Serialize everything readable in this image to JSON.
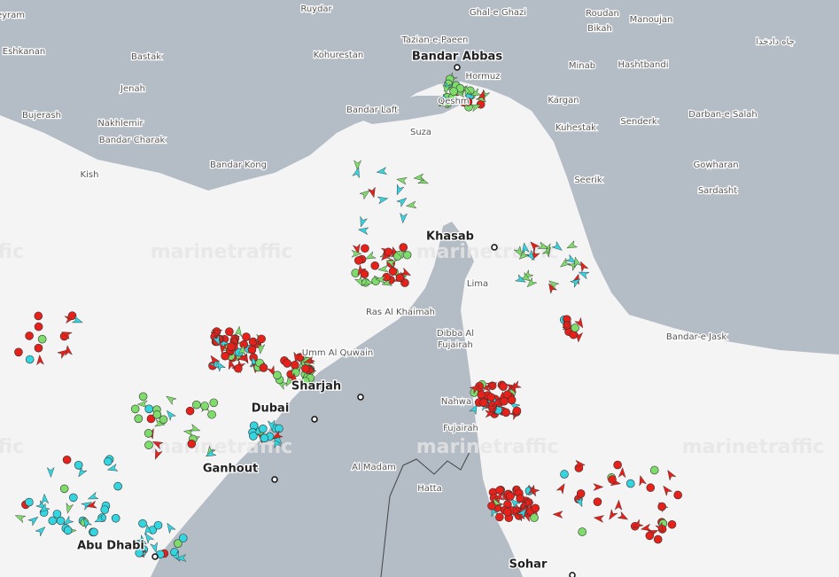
{
  "places": [
    "eyram",
    "Ruydar",
    "Ghal-e Ghazi",
    "Roudan",
    "Manoujan",
    "Bikah",
    "جاه دادخدا",
    "Eshkanan",
    "Bastak",
    "Kohurestan",
    "Tazian-e-Paeen",
    "Bandar Abbas",
    "Minab",
    "Hashtbandi",
    "Jenah",
    "Hormuz",
    "Bujerash",
    "Nakhlemir",
    "Bandar Laft",
    "Qeshm",
    "Kargan",
    "Senderk",
    "Darban-e Salah",
    "Bandar Charak",
    "Suza",
    "Kuhestak",
    "Kish",
    "Bandar Kong",
    "Gowharan",
    "Seerik",
    "Sardasht",
    "Khasab",
    "Lima",
    "Ras Al Khaimah",
    "Dibba Al",
    "Fujairah",
    "Bandar-e Jask",
    "Umm Al Quwain",
    "Sharjah",
    "Nahwa",
    "Dubai",
    "Fujairah",
    "Al Madam",
    "Hatta",
    "Ganhout",
    "Abu Dhabi",
    "Sohar"
  ],
  "watermark": "marinetraffic"
}
